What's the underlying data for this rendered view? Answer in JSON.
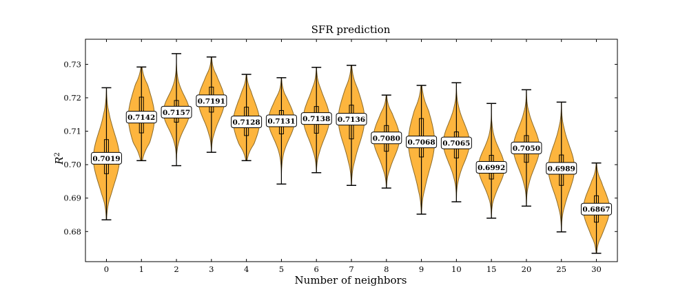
{
  "chart_data": {
    "type": "violin",
    "title": "SFR prediction",
    "xlabel": "Number of neighbors",
    "ylabel": "R",
    "ylabel_superscript": "2",
    "ylim": [
      0.671,
      0.7375
    ],
    "yticks": [
      0.68,
      0.69,
      0.7,
      0.71,
      0.72,
      0.73
    ],
    "ytick_labels": [
      "0.68",
      "0.69",
      "0.70",
      "0.71",
      "0.72",
      "0.73"
    ],
    "categories": [
      "0",
      "1",
      "2",
      "3",
      "4",
      "5",
      "6",
      "7",
      "8",
      "9",
      "10",
      "15",
      "20",
      "25",
      "30"
    ],
    "series": [
      {
        "label": "0.7019",
        "median": 0.7019,
        "min": 0.6835,
        "max": 0.723,
        "q1": 0.6973,
        "q3": 0.7075
      },
      {
        "label": "0.7142",
        "median": 0.7142,
        "min": 0.7012,
        "max": 0.7292,
        "q1": 0.7095,
        "q3": 0.7202
      },
      {
        "label": "0.7157",
        "median": 0.7157,
        "min": 0.6997,
        "max": 0.7332,
        "q1": 0.7127,
        "q3": 0.7192
      },
      {
        "label": "0.7191",
        "median": 0.7191,
        "min": 0.7037,
        "max": 0.7322,
        "q1": 0.7157,
        "q3": 0.7232
      },
      {
        "label": "0.7128",
        "median": 0.7128,
        "min": 0.7012,
        "max": 0.727,
        "q1": 0.7087,
        "q3": 0.7172
      },
      {
        "label": "0.7131",
        "median": 0.7131,
        "min": 0.6942,
        "max": 0.726,
        "q1": 0.7092,
        "q3": 0.7162
      },
      {
        "label": "0.7138",
        "median": 0.7138,
        "min": 0.6976,
        "max": 0.7291,
        "q1": 0.7094,
        "q3": 0.7174
      },
      {
        "label": "0.7136",
        "median": 0.7136,
        "min": 0.6938,
        "max": 0.7297,
        "q1": 0.7077,
        "q3": 0.7178
      },
      {
        "label": "0.7080",
        "median": 0.708,
        "min": 0.693,
        "max": 0.7208,
        "q1": 0.704,
        "q3": 0.7117
      },
      {
        "label": "0.7068",
        "median": 0.7068,
        "min": 0.6852,
        "max": 0.7237,
        "q1": 0.7023,
        "q3": 0.7138
      },
      {
        "label": "0.7065",
        "median": 0.7065,
        "min": 0.6889,
        "max": 0.7245,
        "q1": 0.702,
        "q3": 0.7098
      },
      {
        "label": "0.6992",
        "median": 0.6992,
        "min": 0.684,
        "max": 0.7183,
        "q1": 0.6957,
        "q3": 0.7028
      },
      {
        "label": "0.7050",
        "median": 0.705,
        "min": 0.6876,
        "max": 0.7224,
        "q1": 0.7007,
        "q3": 0.7087
      },
      {
        "label": "0.6989",
        "median": 0.6989,
        "min": 0.6799,
        "max": 0.7187,
        "q1": 0.6938,
        "q3": 0.7029
      },
      {
        "label": "0.6867",
        "median": 0.6867,
        "min": 0.6735,
        "max": 0.7005,
        "q1": 0.6828,
        "q3": 0.6907
      }
    ],
    "colors": {
      "fill": "#FDB53E",
      "edge": "#8A6A2A",
      "line": "#000000",
      "label_bg": "#ffffff"
    },
    "grid": false
  }
}
